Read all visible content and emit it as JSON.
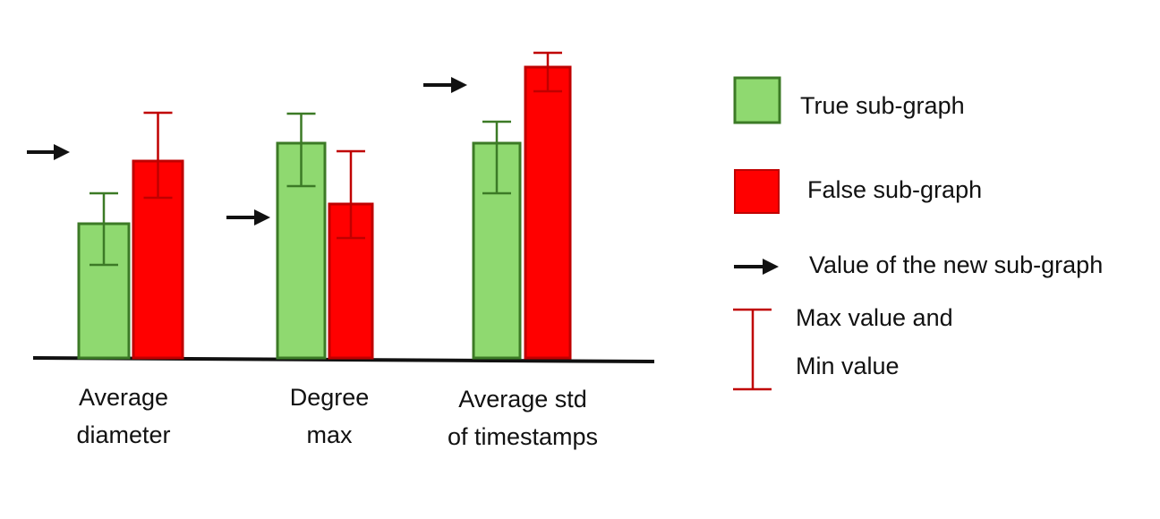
{
  "colors": {
    "true_fill": "#8FD970",
    "true_stroke": "#3C7A26",
    "false_fill": "#FF0000",
    "false_stroke": "#C00000",
    "arrow": "#111111",
    "axis": "#111111"
  },
  "chart_data": {
    "type": "bar",
    "categories": [
      {
        "line1": "Average",
        "line2": "diameter"
      },
      {
        "line1": "Degree",
        "line2": "max"
      },
      {
        "line1": "Average std",
        "line2": "of timestamps"
      }
    ],
    "series": [
      {
        "name": "True sub-graph",
        "values": [
          150,
          240,
          240
        ],
        "min": [
          104,
          192,
          184
        ],
        "max": [
          184,
          273,
          264
        ]
      },
      {
        "name": "False sub-graph",
        "values": [
          220,
          172,
          325
        ],
        "min": [
          179,
          134,
          298
        ],
        "max": [
          274,
          231,
          341
        ]
      }
    ],
    "new_value": [
      230,
      157,
      305
    ],
    "ylim": [
      0,
      400
    ],
    "grid": false
  },
  "legend": {
    "true_label": "True sub-graph",
    "false_label": "False sub-graph",
    "arrow_label": "Value of the new sub-graph",
    "range_label_1": "Max value and",
    "range_label_2": "Min value"
  }
}
